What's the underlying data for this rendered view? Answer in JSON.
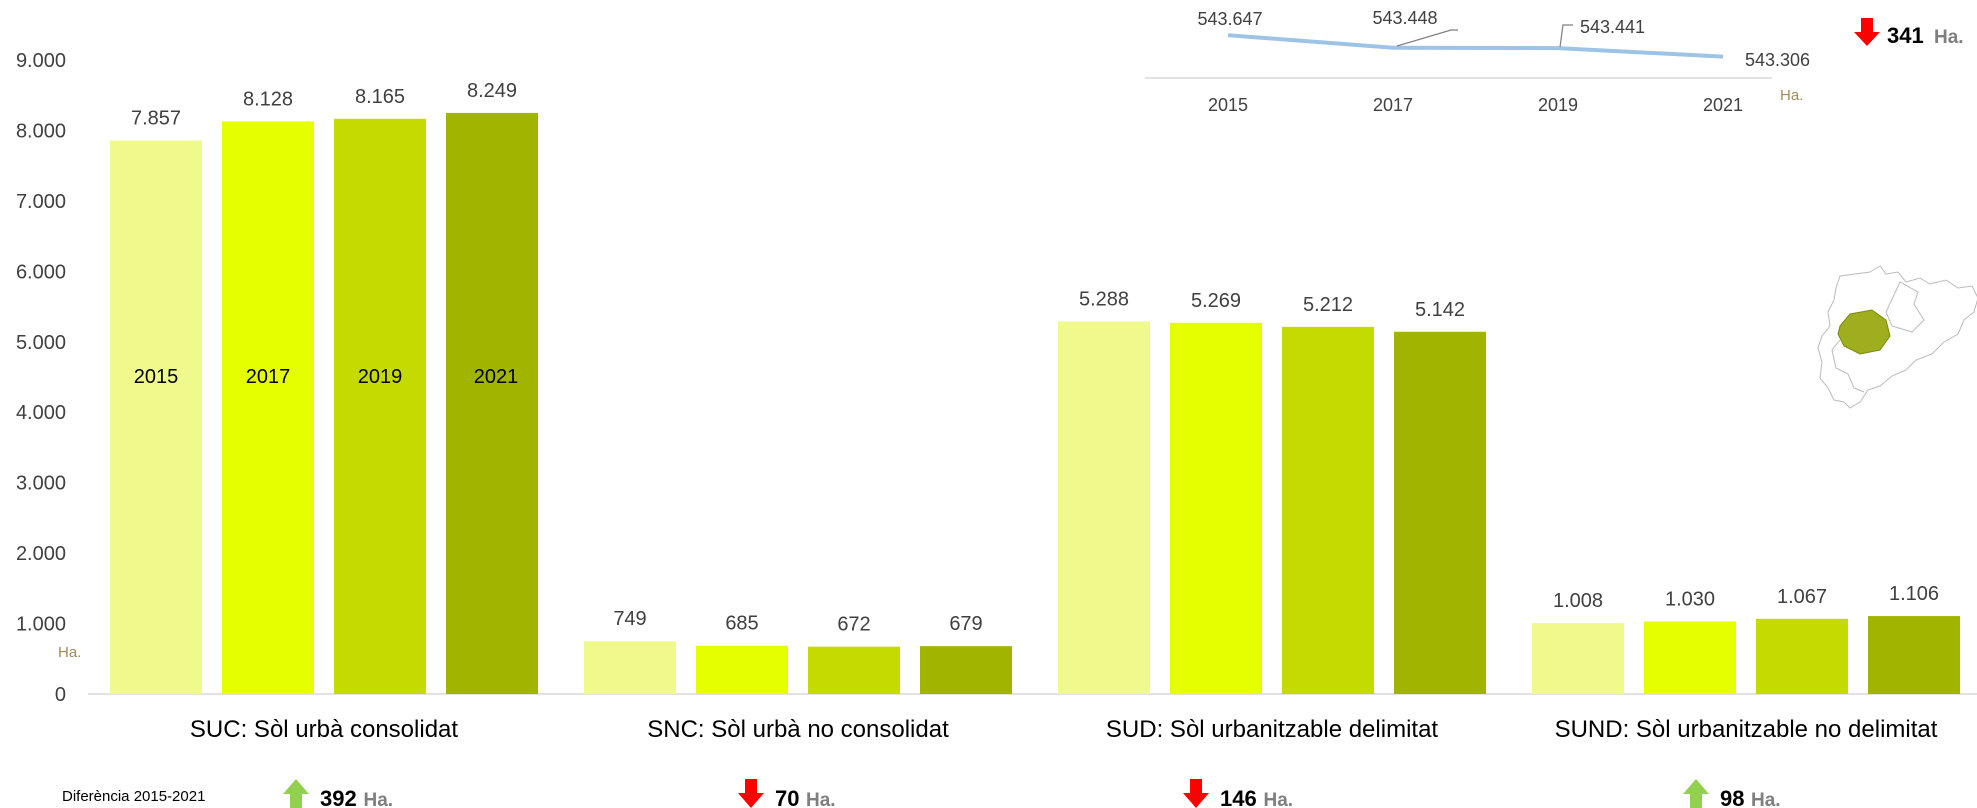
{
  "chart_data": [
    {
      "type": "bar",
      "categories": [
        "SUC: Sòl urbà consolidat",
        "SNC: Sòl urbà no consolidat",
        "SUD: Sòl urbanitzable delimitat",
        "SUND: Sòl urbanitzable no delimitat"
      ],
      "series": [
        {
          "name": "2015",
          "values": [
            7857,
            749,
            5288,
            1008
          ]
        },
        {
          "name": "2017",
          "values": [
            8128,
            685,
            5269,
            1030
          ]
        },
        {
          "name": "2019",
          "values": [
            8165,
            672,
            5212,
            1067
          ]
        },
        {
          "name": "2021",
          "values": [
            8249,
            679,
            5142,
            1106
          ]
        }
      ],
      "value_labels": [
        [
          "7.857",
          "749",
          "5.288",
          "1.008"
        ],
        [
          "8.128",
          "685",
          "5.269",
          "1.030"
        ],
        [
          "8.165",
          "672",
          "5.212",
          "1.067"
        ],
        [
          "8.249",
          "679",
          "5.142",
          "1.106"
        ]
      ],
      "yticks": [
        "0",
        "1.000",
        "2.000",
        "3.000",
        "4.000",
        "5.000",
        "6.000",
        "7.000",
        "8.000",
        "9.000"
      ],
      "ylim": [
        0,
        9000
      ],
      "yunit": "Ha.",
      "grid": false,
      "legend": "inside first category bars",
      "colors": [
        "#f0fa8c",
        "#e6ff00",
        "#c5db00",
        "#a0b400"
      ]
    },
    {
      "type": "line",
      "x": [
        "2015",
        "2017",
        "2019",
        "2021"
      ],
      "values": [
        543647,
        543448,
        543441,
        543306
      ],
      "value_labels": [
        "543.647",
        "543.448",
        "543.441",
        "543.306"
      ],
      "unit": "Ha.",
      "color": "#9dc3e6",
      "total_diff": {
        "direction": "down",
        "value": "341",
        "unit": "Ha."
      }
    }
  ],
  "footer": {
    "label": "Diferència 2015-2021",
    "diffs": [
      {
        "direction": "up",
        "value": "392",
        "unit": "Ha."
      },
      {
        "direction": "down",
        "value": "70",
        "unit": "Ha."
      },
      {
        "direction": "down",
        "value": "146",
        "unit": "Ha."
      },
      {
        "direction": "up",
        "value": "98",
        "unit": "Ha."
      }
    ]
  },
  "colors": {
    "up": "#92d050",
    "down": "#ff0000",
    "axis": "#d9d9d9"
  }
}
